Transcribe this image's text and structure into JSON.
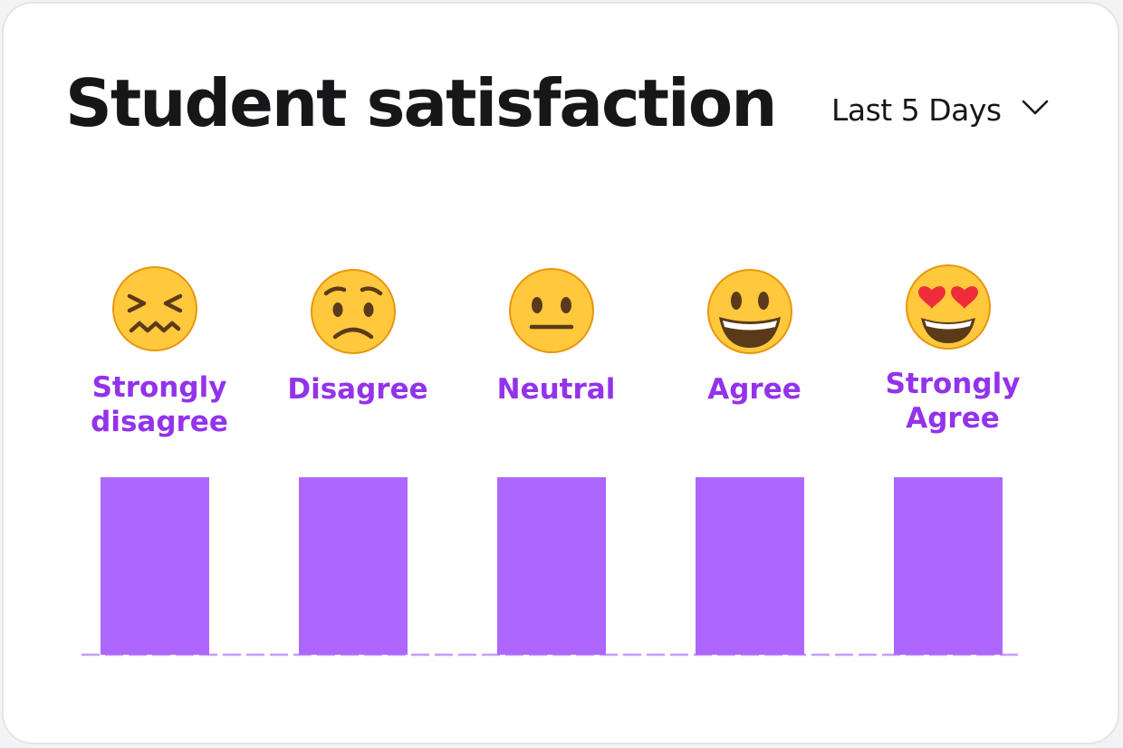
{
  "widget": {
    "title": "Student satisfaction",
    "range_label": "Last 5 Days"
  },
  "colors": {
    "label": "#9333ea",
    "bar": "#ad67ff",
    "baseline": "#c79cff",
    "face": "#ffc83d",
    "face_edge": "#e8960c",
    "feature": "#5b3a1a"
  },
  "chart_data": {
    "type": "bar",
    "title": "Student satisfaction",
    "categories": [
      "Strongly disagree",
      "Disagree",
      "Neutral",
      "Agree",
      "Strongly Agree"
    ],
    "label_lines": [
      [
        "Strongly",
        "disagree"
      ],
      [
        "Disagree"
      ],
      [
        "Neutral"
      ],
      [
        "Agree"
      ],
      [
        "Strongly",
        "Agree"
      ]
    ],
    "icons": [
      "confounded-face-icon",
      "worried-face-icon",
      "neutral-face-icon",
      "grinning-face-icon",
      "heart-eyes-face-icon"
    ],
    "values": [
      1,
      1,
      1,
      1,
      1
    ],
    "ylim": [
      0,
      1
    ],
    "xlabel": "",
    "ylabel": "",
    "grid": false,
    "legend": "none"
  }
}
